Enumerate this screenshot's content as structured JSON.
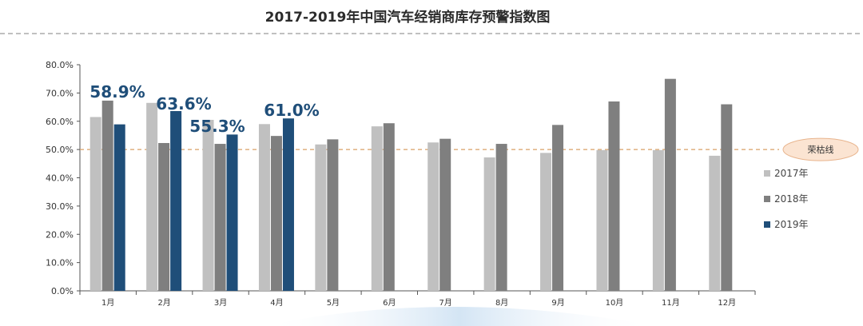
{
  "chart_data": {
    "type": "bar",
    "title": "2017-2019年中国汽车经销商库存预警指数图",
    "categories": [
      "1月",
      "2月",
      "3月",
      "4月",
      "5月",
      "6月",
      "7月",
      "8月",
      "9月",
      "10月",
      "11月",
      "12月"
    ],
    "y_ticks": [
      "0.0%",
      "10.0%",
      "20.0%",
      "30.0%",
      "40.0%",
      "50.0%",
      "60.0%",
      "70.0%",
      "80.0%"
    ],
    "ylim": [
      0,
      80
    ],
    "series": [
      {
        "name": "2017年",
        "color": "#c0c0c0",
        "values": [
          61.5,
          66.5,
          60.5,
          59.0,
          51.8,
          58.2,
          52.5,
          47.2,
          48.8,
          49.8,
          49.8,
          47.8
        ]
      },
      {
        "name": "2018年",
        "color": "#7f7f7f",
        "values": [
          67.3,
          52.3,
          52.0,
          54.8,
          53.6,
          59.3,
          53.8,
          52.0,
          58.7,
          67.0,
          75.0,
          66.0
        ]
      },
      {
        "name": "2019年",
        "color": "#1f4e79",
        "values": [
          58.9,
          63.6,
          55.3,
          61.0,
          null,
          null,
          null,
          null,
          null,
          null,
          null,
          null
        ]
      }
    ],
    "callouts": [
      "58.9%",
      "63.6%",
      "55.3%",
      "61.0%"
    ],
    "reference_line": {
      "value": 50,
      "label": "荣枯线",
      "color": "#d9a066"
    },
    "legend_position": "right",
    "grid": false
  }
}
